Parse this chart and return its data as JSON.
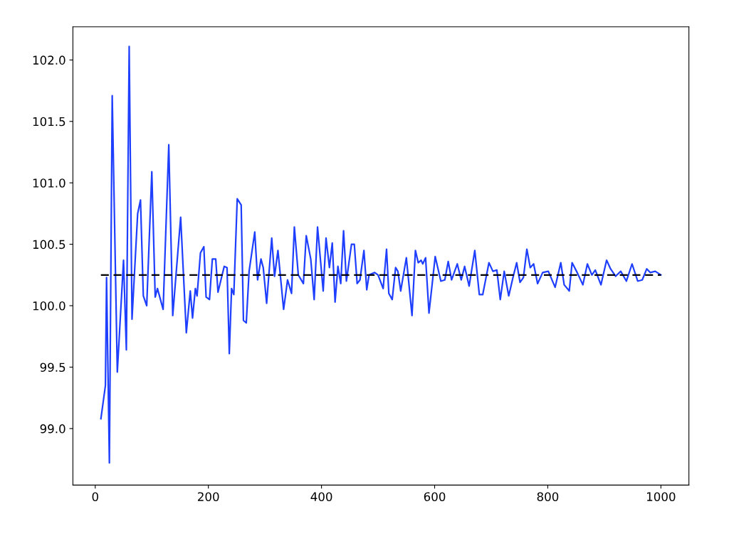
{
  "chart_data": {
    "type": "line",
    "x": [
      10,
      18,
      20,
      25,
      30,
      39,
      50,
      55,
      60,
      65,
      75,
      80,
      85,
      91,
      100,
      106,
      110,
      120,
      130,
      137,
      151,
      161,
      168,
      172,
      177,
      180,
      186,
      192,
      196,
      202,
      207,
      213,
      217,
      228,
      233,
      237,
      241,
      245,
      251,
      258,
      262,
      267,
      272,
      282,
      287,
      293,
      297,
      303,
      312,
      317,
      323,
      333,
      340,
      347,
      352,
      359,
      368,
      373,
      381,
      387,
      393,
      403,
      408,
      414,
      419,
      424,
      429,
      434,
      439,
      444,
      453,
      458,
      463,
      468,
      475,
      480,
      484,
      494,
      500,
      509,
      515,
      519,
      525,
      531,
      535,
      540,
      550,
      560,
      566,
      571,
      576,
      579,
      584,
      590,
      601,
      611,
      618,
      624,
      630,
      640,
      647,
      653,
      661,
      671,
      679,
      685,
      696,
      703,
      710,
      716,
      723,
      731,
      738,
      745,
      751,
      757,
      763,
      769,
      775,
      782,
      791,
      801,
      813,
      823,
      829,
      838,
      843,
      852,
      862,
      870,
      878,
      884,
      894,
      904,
      911,
      920,
      929,
      939,
      949,
      959,
      967,
      975,
      981,
      990,
      1000
    ],
    "series": [
      {
        "color": "#1f3fff",
        "values": [
          99.08,
          99.35,
          100.23,
          98.72,
          101.71,
          99.46,
          100.37,
          99.64,
          102.11,
          99.89,
          100.75,
          100.86,
          100.08,
          100.0,
          101.09,
          100.07,
          100.14,
          99.97,
          101.31,
          99.92,
          100.72,
          99.78,
          100.12,
          99.9,
          100.14,
          100.08,
          100.43,
          100.48,
          100.07,
          100.05,
          100.38,
          100.38,
          100.11,
          100.32,
          100.31,
          99.61,
          100.14,
          100.09,
          100.87,
          100.82,
          99.88,
          99.86,
          100.28,
          100.6,
          100.21,
          100.38,
          100.31,
          100.02,
          100.55,
          100.24,
          100.45,
          99.97,
          100.21,
          100.1,
          100.64,
          100.25,
          100.18,
          100.57,
          100.38,
          100.05,
          100.64,
          100.12,
          100.55,
          100.31,
          100.51,
          100.03,
          100.32,
          100.18,
          100.61,
          100.2,
          100.5,
          100.5,
          100.18,
          100.21,
          100.45,
          100.13,
          100.25,
          100.27,
          100.25,
          100.14,
          100.46,
          100.1,
          100.05,
          100.31,
          100.28,
          100.12,
          100.39,
          99.92,
          100.45,
          100.35,
          100.37,
          100.34,
          100.39,
          99.94,
          100.4,
          100.2,
          100.21,
          100.36,
          100.21,
          100.34,
          100.21,
          100.32,
          100.16,
          100.45,
          100.09,
          100.09,
          100.35,
          100.28,
          100.29,
          100.05,
          100.28,
          100.08,
          100.22,
          100.35,
          100.19,
          100.23,
          100.46,
          100.31,
          100.34,
          100.18,
          100.27,
          100.28,
          100.15,
          100.35,
          100.17,
          100.12,
          100.35,
          100.27,
          100.17,
          100.34,
          100.25,
          100.29,
          100.17,
          100.37,
          100.3,
          100.24,
          100.28,
          100.2,
          100.34,
          100.2,
          100.21,
          100.3,
          100.27,
          100.28,
          100.25
        ]
      }
    ],
    "ref_lines": [
      {
        "axis": "y",
        "value": 100.25,
        "color": "#000000",
        "line_style": "dashed"
      }
    ],
    "xlim": [
      -39.5,
      1049.5
    ],
    "xticks": [
      0,
      200,
      400,
      600,
      800,
      1000
    ],
    "ylim": [
      98.54,
      102.27
    ],
    "yticks": [
      {
        "value": 99.0,
        "label": "99.0"
      },
      {
        "value": 99.5,
        "label": "99.5"
      },
      {
        "value": 100.0,
        "label": "100.0"
      },
      {
        "value": 100.5,
        "label": "100.5"
      },
      {
        "value": 101.0,
        "label": "101.0"
      },
      {
        "value": 101.5,
        "label": "101.5"
      },
      {
        "value": 102.0,
        "label": "102.0"
      }
    ],
    "grid": false
  }
}
